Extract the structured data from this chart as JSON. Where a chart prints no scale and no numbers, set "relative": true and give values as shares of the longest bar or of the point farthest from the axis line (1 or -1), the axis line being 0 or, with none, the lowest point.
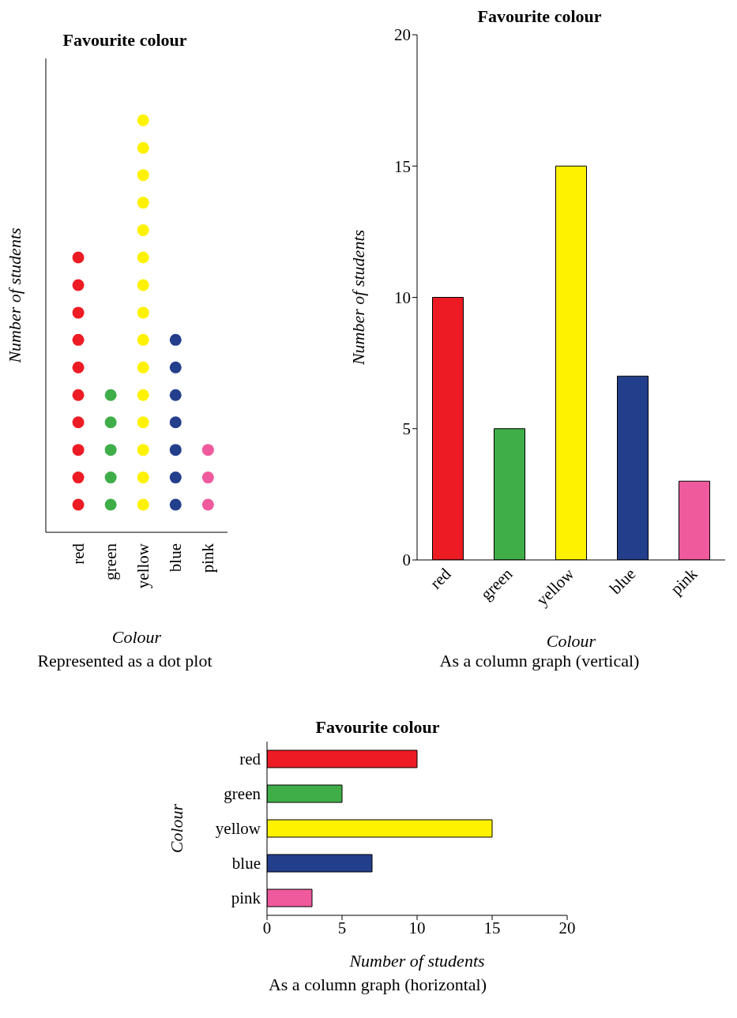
{
  "chart_data": [
    {
      "type": "scatter",
      "relative": true,
      "title": "Favourite colour",
      "categories": [
        "red",
        "green",
        "yellow",
        "blue",
        "pink"
      ],
      "xlabel": "Colour",
      "ylabel": "Number of students",
      "annotations": [
        "Represented as a dot plot"
      ],
      "series": [
        {
          "color": "#ed1c24",
          "x": [
            "red",
            "red",
            "red",
            "red",
            "red",
            "red",
            "red",
            "red",
            "red",
            "red"
          ],
          "values": [
            0.067,
            0.133,
            0.2,
            0.267,
            0.333,
            0.4,
            0.467,
            0.533,
            0.6,
            0.667
          ]
        },
        {
          "color": "#3fae49",
          "x": [
            "green",
            "green",
            "green",
            "green",
            "green"
          ],
          "values": [
            0.067,
            0.133,
            0.2,
            0.267,
            0.333
          ]
        },
        {
          "color": "#fff200",
          "x": [
            "yellow",
            "yellow",
            "yellow",
            "yellow",
            "yellow",
            "yellow",
            "yellow",
            "yellow",
            "yellow",
            "yellow",
            "yellow",
            "yellow",
            "yellow",
            "yellow",
            "yellow"
          ],
          "values": [
            0.067,
            0.133,
            0.2,
            0.267,
            0.333,
            0.4,
            0.467,
            0.533,
            0.6,
            0.667,
            0.733,
            0.8,
            0.867,
            0.933,
            1
          ]
        },
        {
          "color": "#233e8b",
          "x": [
            "blue",
            "blue",
            "blue",
            "blue",
            "blue",
            "blue",
            "blue"
          ],
          "values": [
            0.067,
            0.133,
            0.2,
            0.267,
            0.333,
            0.4,
            0.467
          ]
        },
        {
          "color": "#ef5a9d",
          "x": [
            "pink",
            "pink",
            "pink"
          ],
          "values": [
            0.067,
            0.133,
            0.2
          ]
        }
      ]
    },
    {
      "type": "bar",
      "title": "Favourite colour",
      "categories": [
        "red",
        "green",
        "yellow",
        "blue",
        "pink"
      ],
      "values": [
        10,
        5,
        15,
        7,
        3
      ],
      "colors": [
        "#ed1c24",
        "#3fae49",
        "#fff200",
        "#233e8b",
        "#ef5a9d"
      ],
      "ylim": [
        0,
        20
      ],
      "yticks": [
        0,
        5,
        10,
        15,
        20
      ],
      "xlabel": "Colour",
      "ylabel": "Number of students",
      "annotations": [
        "As a column graph (vertical)"
      ]
    },
    {
      "type": "bar",
      "orientation": "horizontal",
      "title": "Favourite colour",
      "categories": [
        "red",
        "green",
        "yellow",
        "blue",
        "pink"
      ],
      "values": [
        10,
        5,
        15,
        7,
        3
      ],
      "colors": [
        "#ed1c24",
        "#3fae49",
        "#fff200",
        "#233e8b",
        "#ef5a9d"
      ],
      "xlim": [
        0,
        20
      ],
      "xticks": [
        0,
        5,
        10,
        15,
        20
      ],
      "xlabel": "Number of students",
      "ylabel": "Colour",
      "annotations": [
        "As a column graph (horizontal)"
      ]
    }
  ]
}
